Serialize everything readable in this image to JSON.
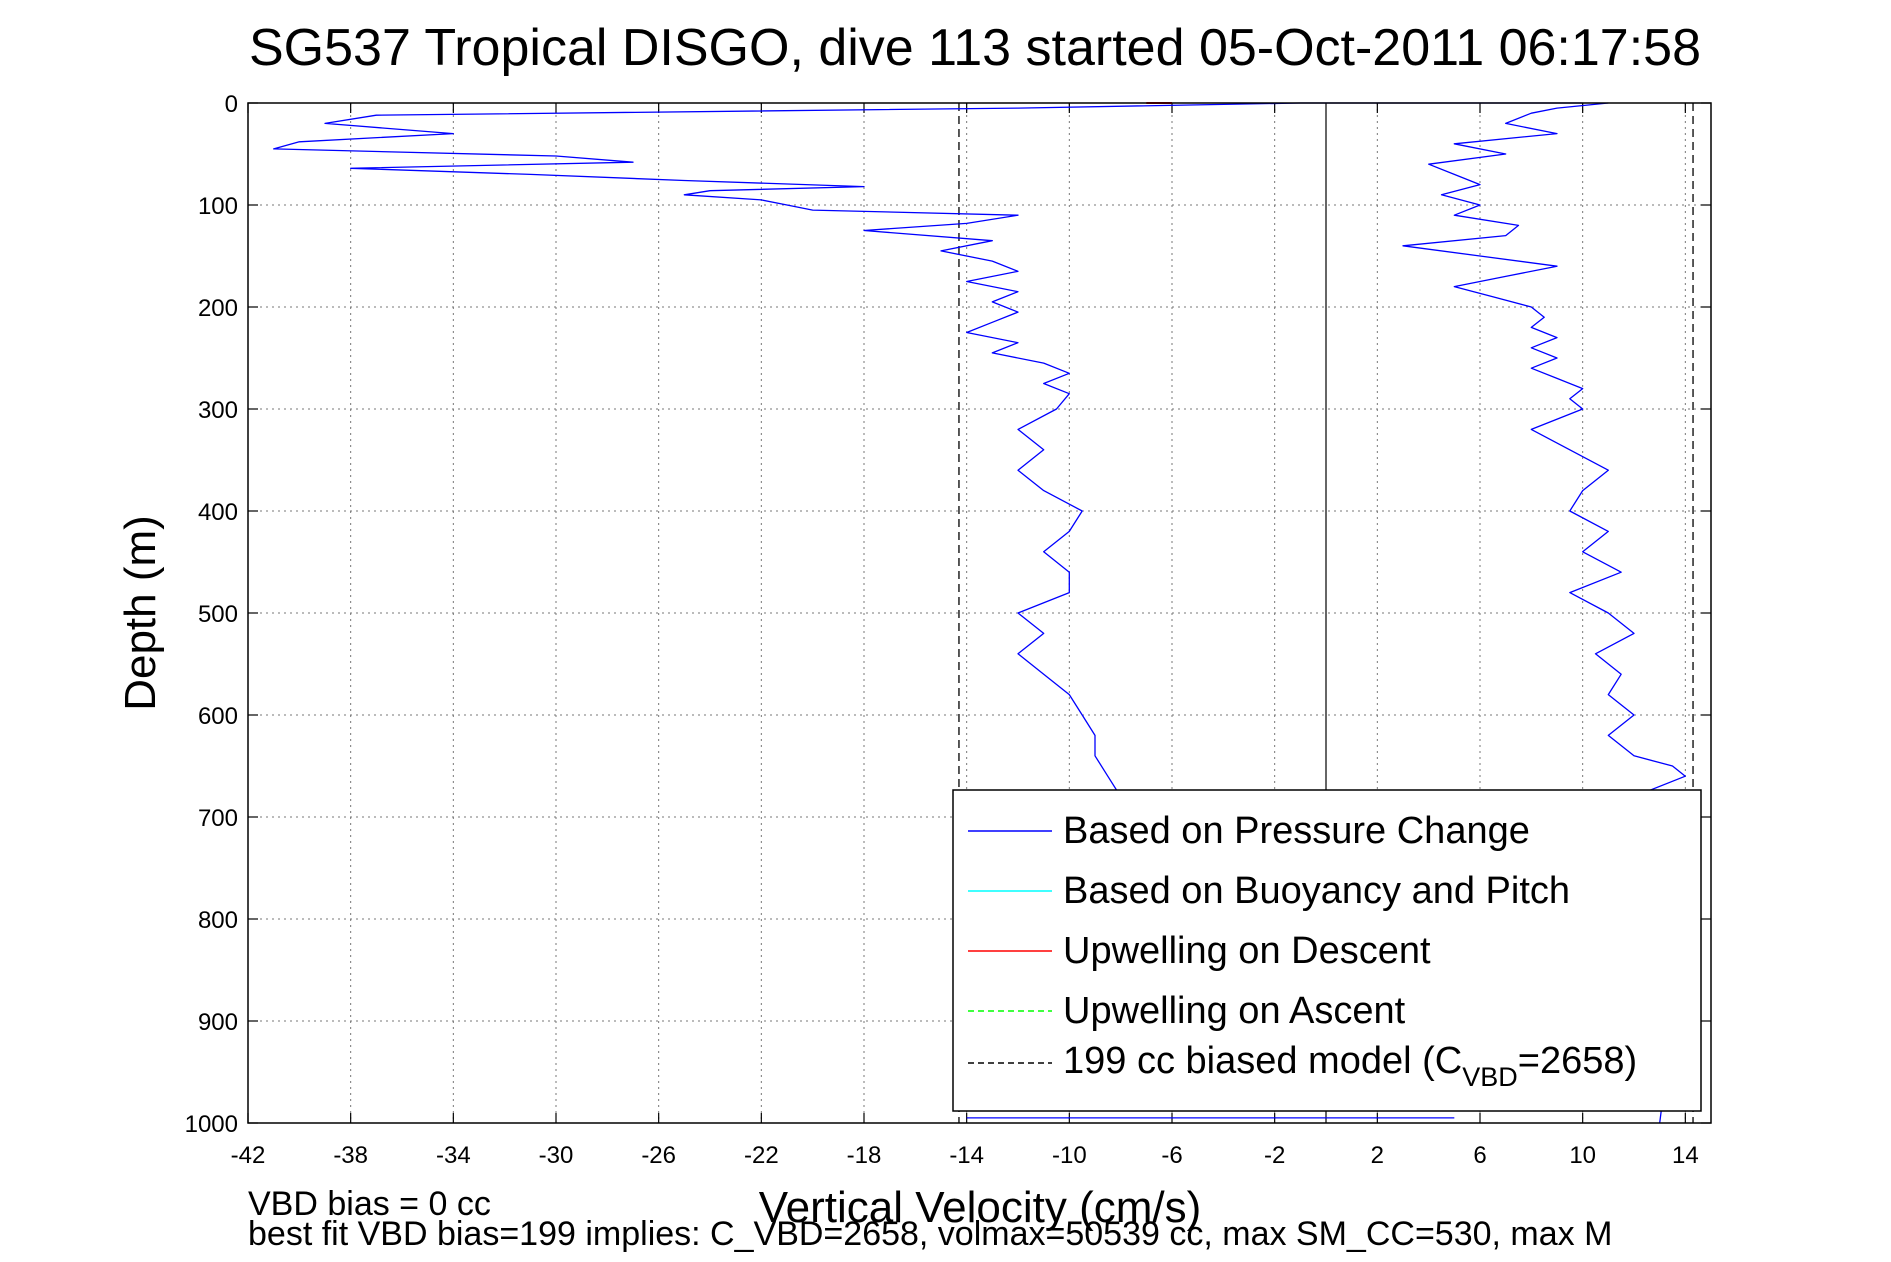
{
  "chart_data": {
    "type": "line",
    "title": "SG537 Tropical DISGO, dive 113 started 05-Oct-2011 06:17:58",
    "xlabel": "Vertical Velocity (cm/s)",
    "ylabel": "Depth (m)",
    "xlim": [
      -42,
      15
    ],
    "ylim": [
      1000,
      0
    ],
    "y_reversed": true,
    "grid": true,
    "legend_position": "bottom-right",
    "x_ticks": [
      -42,
      -38,
      -34,
      -30,
      -26,
      -22,
      -18,
      -14,
      -10,
      -6,
      -2,
      2,
      6,
      10,
      14
    ],
    "y_ticks": [
      0,
      100,
      200,
      300,
      400,
      500,
      600,
      700,
      800,
      900,
      1000
    ],
    "zero_line_x": 0,
    "legend": [
      {
        "label": "Based on Pressure Change",
        "color": "#0000ff",
        "style": "solid"
      },
      {
        "label": "Based on Buoyancy and Pitch",
        "color": "#00ffff",
        "style": "solid"
      },
      {
        "label": "Upwelling on Descent",
        "color": "#ff0000",
        "style": "solid"
      },
      {
        "label": "Upwelling on Ascent",
        "color": "#00ff00",
        "style": "dashed"
      },
      {
        "label": "199 cc biased model (C",
        "sub": "VBD",
        "tail": "=2658)",
        "color": "#000000",
        "style": "dashed"
      }
    ],
    "series": [
      {
        "name": "Based on Pressure Change",
        "color": "#0000ff",
        "segments": [
          {
            "part": "descent",
            "depth": [
              0,
              5,
              12,
              20,
              30,
              38,
              45,
              52,
              58,
              64,
              70,
              76,
              82,
              86,
              90,
              95,
              100,
              105,
              110,
              118,
              125,
              135,
              145,
              155,
              165,
              175,
              185,
              195,
              205,
              215,
              225,
              235,
              245,
              255,
              265,
              275,
              285,
              300,
              320,
              340,
              360,
              380,
              400,
              420,
              440,
              460,
              480,
              500,
              520,
              540,
              560,
              580,
              600,
              620,
              640,
              660,
              680,
              700
            ],
            "velocity": [
              -1,
              -12,
              -37,
              -39,
              -34,
              -40,
              -41,
              -30,
              -27,
              -38,
              -31,
              -25,
              -18,
              -24,
              -25,
              -22,
              -21,
              -20,
              -12,
              -14,
              -18,
              -13,
              -15,
              -13,
              -12,
              -14,
              -12,
              -13,
              -12,
              -13,
              -14,
              -12,
              -13,
              -11,
              -10,
              -11,
              -10,
              -10.5,
              -12,
              -11,
              -12,
              -11,
              -9.5,
              -10,
              -11,
              -10,
              -10,
              -12,
              -11,
              -12,
              -11,
              -10,
              -9.5,
              -9,
              -9,
              -8.5,
              -8,
              -8
            ]
          },
          {
            "part": "ascent",
            "depth": [
              1000,
              900,
              800,
              700,
              680,
              660,
              650,
              640,
              620,
              600,
              580,
              560,
              540,
              520,
              500,
              480,
              460,
              440,
              420,
              400,
              380,
              360,
              340,
              320,
              300,
              290,
              280,
              270,
              260,
              250,
              240,
              230,
              220,
              210,
              200,
              190,
              180,
              170,
              160,
              150,
              140,
              130,
              120,
              110,
              100,
              90,
              80,
              70,
              60,
              50,
              40,
              30,
              20,
              10,
              5,
              0
            ],
            "velocity": [
              13,
              13.5,
              13,
              13,
              12,
              14,
              13.5,
              12,
              11,
              12,
              11,
              11.5,
              10.5,
              12,
              11,
              9.5,
              11.5,
              10,
              11,
              9.5,
              10,
              11,
              9.5,
              8,
              10,
              9.5,
              10,
              9,
              8,
              9,
              8,
              9,
              8,
              8.5,
              8,
              6.5,
              5,
              7,
              9,
              6,
              3,
              7,
              7.5,
              5,
              6,
              4.5,
              6,
              5,
              4,
              7,
              5,
              9,
              7,
              8,
              9,
              11
            ]
          }
        ]
      },
      {
        "name": "Upwelling on Descent",
        "color": "#ff0000",
        "depth": [
          0,
          0
        ],
        "velocity": [
          -7,
          -6
        ]
      },
      {
        "name": "199 cc biased model",
        "color": "#000000",
        "style": "dashed",
        "x": [
          -14.3,
          14.3
        ]
      }
    ],
    "bottom_segment": {
      "depth": [
        995,
        995
      ],
      "velocity": [
        -14,
        5
      ]
    }
  },
  "footer": {
    "line1": "VBD bias = 0 cc",
    "line2": "best fit VBD bias=199 implies: C_VBD=2658, volmax=50539 cc, max SM_CC=530, max M"
  }
}
